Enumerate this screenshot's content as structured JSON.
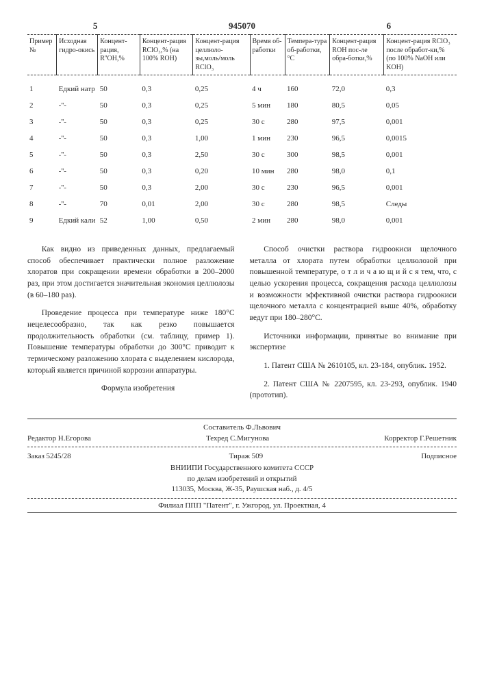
{
  "page_left": "5",
  "page_right": "6",
  "doc_number": "945070",
  "table": {
    "headers": [
      "Пример №",
      "Исходная гидро-окись",
      "Концент-рация, R''ОН,%",
      "Концент-рация RClO₃,% (на 100% ROH)",
      "Концент-рация целлюло-зы,моль/моль RClO₃",
      "Время об-работки",
      "Темпера-тура об-работки, °C",
      "Концент-рация ROH пос-ле обра-ботки,%",
      "Концент-рация RClO₃ после обработ-ки,% (по 100% NaOH или KOH)"
    ],
    "rows": [
      [
        "1",
        "Едкий натр",
        "50",
        "0,3",
        "0,25",
        "4 ч",
        "160",
        "72,0",
        "0,3"
      ],
      [
        "2",
        "-''-",
        "50",
        "0,3",
        "0,25",
        "5 мин",
        "180",
        "80,5",
        "0,05"
      ],
      [
        "3",
        "-''-",
        "50",
        "0,3",
        "0,25",
        "30 с",
        "280",
        "97,5",
        "0,001"
      ],
      [
        "4",
        "-''-",
        "50",
        "0,3",
        "1,00",
        "1 мин",
        "230",
        "96,5",
        "0,0015"
      ],
      [
        "5",
        "-''-",
        "50",
        "0,3",
        "2,50",
        "30 с",
        "300",
        "98,5",
        "0,001"
      ],
      [
        "6",
        "-''-",
        "50",
        "0,3",
        "0,20",
        "10 мин",
        "280",
        "98,0",
        "0,1"
      ],
      [
        "7",
        "-''-",
        "50",
        "0,3",
        "2,00",
        "30 с",
        "230",
        "96,5",
        "0,001"
      ],
      [
        "8",
        "-''-",
        "70",
        "0,01",
        "2,00",
        "30 с",
        "280",
        "98,5",
        "Следы"
      ],
      [
        "9",
        "Едкий кали",
        "52",
        "1,00",
        "0,50",
        "2 мин",
        "280",
        "98,0",
        "0,001"
      ]
    ]
  },
  "paragraphs": {
    "p1": "Как видно из приведенных данных, предлагаемый способ обеспечивает практически полное разложение хлоратов при сокращении времени обработки в 200–2000 раз, при этом достигается значительная экономия целлюлозы (в 60–180 раз).",
    "p2": "Проведение процесса при температуре ниже 180°C нецелесообразно, так как резко повышается продолжительность обработки (см. таблицу, пример 1). Повышение температуры обработки до 300°C приводит к термическому разложению хлората с выделением кислорода, который является причиной коррозии аппаратуры.",
    "formula_title": "Формула изобретения",
    "p3": "Способ очистки раствора гидроокиси щелочного металла от хлората путем обработки целлюлозой при повышенной температуре, о т л и ч а ю щ и й с я тем, что, с целью ускорения процесса, сокращения расхода целлюлозы и возможности эффективной очистки раствора гидроокиси щелочного металла с концентрацией выше 40%, обработку ведут при 180–280°C.",
    "sources_title": "Источники информации, принятые во внимание при экспертизе",
    "src1": "1. Патент США № 2610105, кл. 23-184, опублик. 1952.",
    "src2": "2. Патент США № 2207595, кл. 23-293, опублик. 1940 (прототип)."
  },
  "footer": {
    "compiler": "Составитель Ф.Львович",
    "editor": "Редактор Н.Егорова",
    "techred": "Техред С.Мигунова",
    "corrector": "Корректор Г.Решетник",
    "order": "Заказ 5245/28",
    "tirazh": "Тираж 509",
    "podpis": "Подписное",
    "org1": "ВНИИПИ Государственного комитета СССР",
    "org2": "по делам изобретений и открытий",
    "addr": "113035, Москва, Ж-35, Раушская наб., д. 4/5",
    "branch": "Филиал ППП \"Патент\", г. Ужгород, ул. Проектная, 4"
  }
}
